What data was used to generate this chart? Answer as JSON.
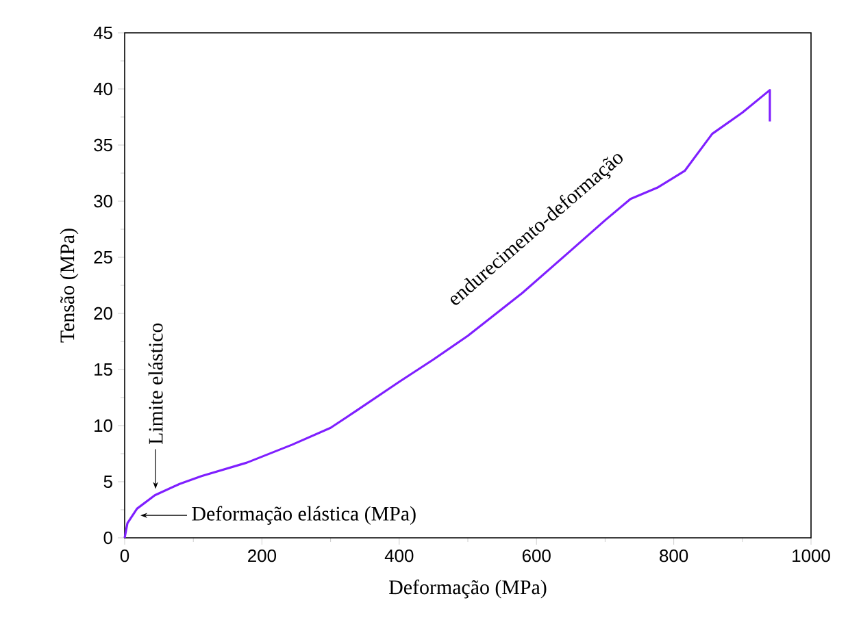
{
  "chart_data": {
    "type": "line",
    "xlabel": "Deformação (MPa)",
    "ylabel": "Tensão (MPa)",
    "x": [
      0,
      4,
      18,
      44,
      80,
      112,
      178,
      244,
      300,
      337,
      400,
      450,
      500,
      577,
      650,
      700,
      737,
      776,
      816,
      856,
      900,
      940,
      940
    ],
    "values": [
      0,
      1.3,
      2.6,
      3.8,
      4.8,
      5.5,
      6.7,
      8.3,
      9.8,
      11.3,
      13.9,
      15.9,
      18.0,
      21.7,
      25.6,
      28.3,
      30.2,
      31.2,
      32.7,
      36.0,
      37.9,
      39.9,
      37.1
    ],
    "color": "#7f1fff",
    "marker": "none",
    "line_style": "solid",
    "grid": false,
    "xlim": [
      0,
      1000
    ],
    "ylim": [
      0,
      45
    ],
    "xticks": [
      0,
      200,
      400,
      600,
      800,
      1000
    ],
    "yticks": [
      0,
      5,
      10,
      15,
      20,
      25,
      30,
      35,
      40,
      45
    ],
    "annotations": [
      {
        "text": "Limite elástico",
        "x": 45,
        "y": 4
      },
      {
        "text": "Deformação elástica (MPa)",
        "x": 15,
        "y": 2
      },
      "endurecimento-deformação"
    ]
  }
}
